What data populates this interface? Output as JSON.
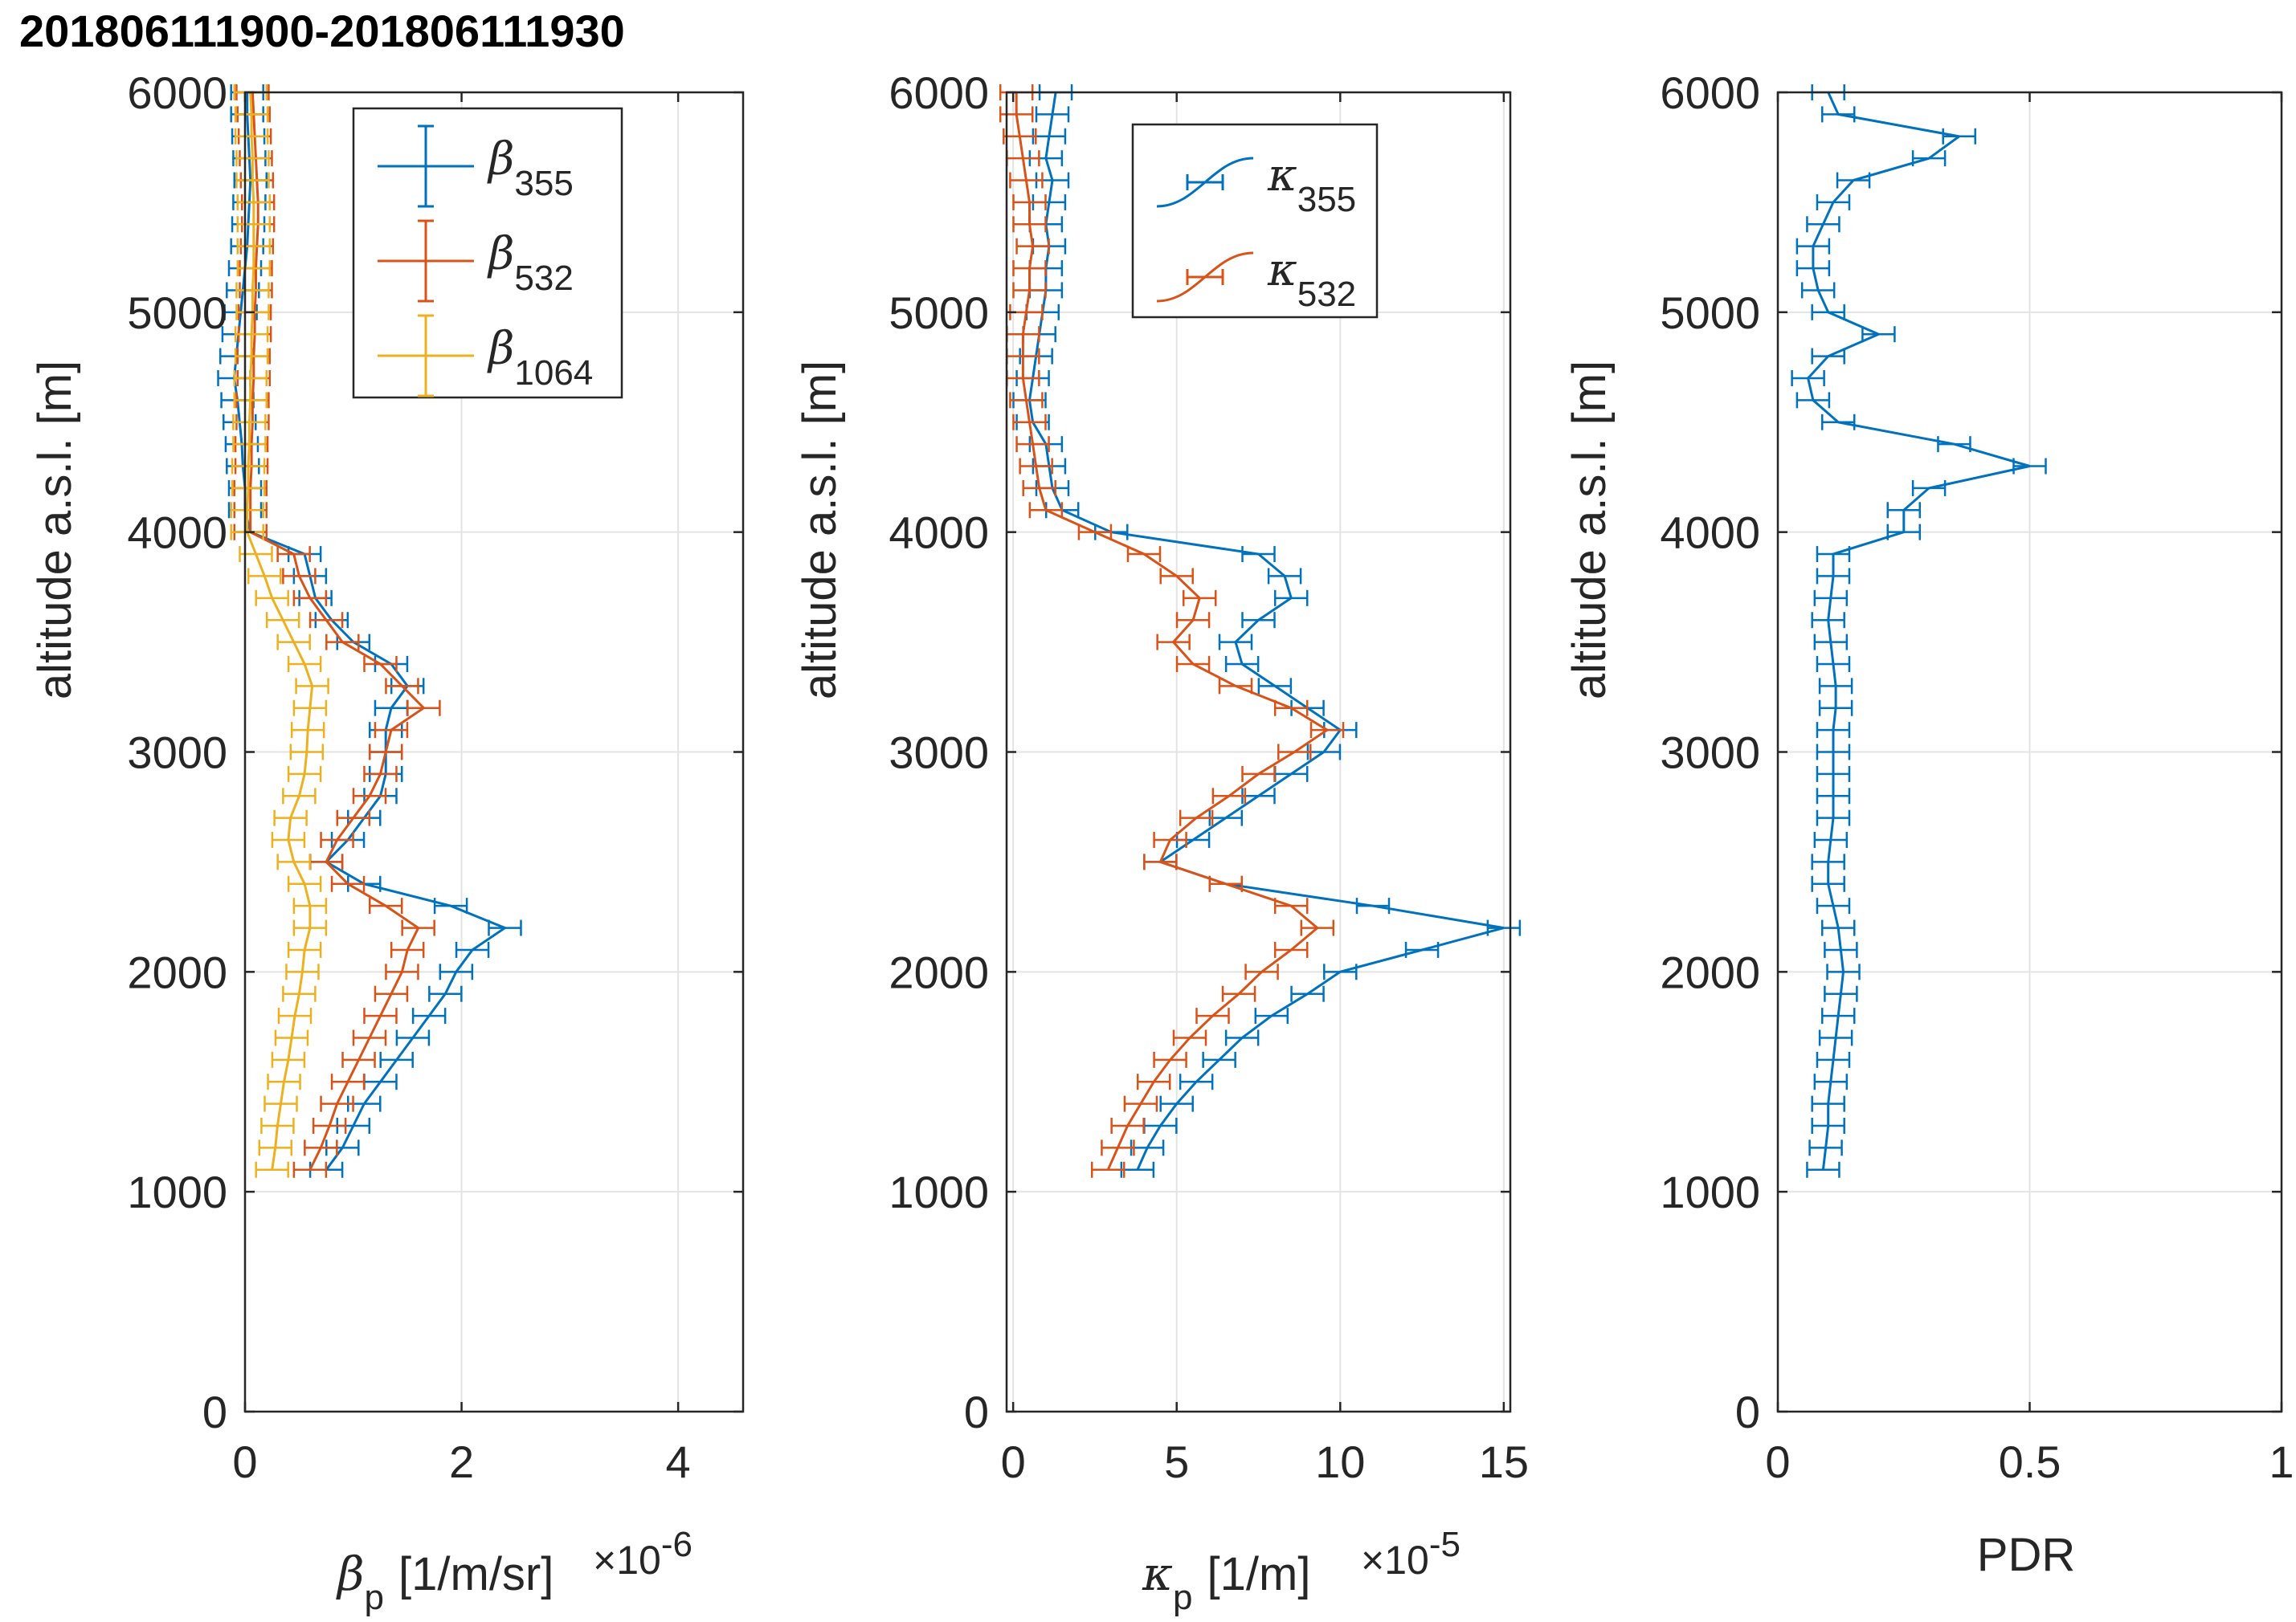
{
  "title": "201806111900-201806111930",
  "chart_data": [
    {
      "type": "line",
      "panel": "backscatter",
      "ylabel": "altitude a.s.l. [m]",
      "xlabel_symbol": "β",
      "xlabel_sub": "p",
      "xlabel_unit": "[1/m/sr]",
      "exponent_base": "×10",
      "exponent_power": "-6",
      "xlim": [
        0,
        4.6
      ],
      "ylim": [
        0,
        6000
      ],
      "xticks": [
        0,
        2,
        4
      ],
      "yticks": [
        0,
        1000,
        2000,
        3000,
        4000,
        5000,
        6000
      ],
      "grid": true,
      "legend_position": "top-right",
      "series": [
        {
          "name": "β355",
          "symbol": "β",
          "sub": "355",
          "color": "#0072BD",
          "y": [
            1100,
            1200,
            1300,
            1400,
            1500,
            1600,
            1700,
            1800,
            1900,
            2000,
            2100,
            2200,
            2300,
            2400,
            2500,
            2600,
            2700,
            2800,
            2900,
            3000,
            3100,
            3200,
            3300,
            3400,
            3500,
            3600,
            3700,
            3800,
            3900,
            4000,
            4100,
            4200,
            4300,
            4400,
            4500,
            4600,
            4700,
            4800,
            4900,
            5000,
            5100,
            5200,
            5300,
            5400,
            5500,
            5600,
            5700,
            5800,
            5900,
            6000
          ],
          "x": [
            0.75,
            0.9,
            1.0,
            1.1,
            1.25,
            1.4,
            1.55,
            1.7,
            1.85,
            1.95,
            2.1,
            2.4,
            1.9,
            1.1,
            0.75,
            0.95,
            1.1,
            1.25,
            1.3,
            1.3,
            1.3,
            1.35,
            1.5,
            1.35,
            1.0,
            0.8,
            0.65,
            0.6,
            0.55,
            0.05,
            0.0,
            0.0,
            -0.02,
            -0.03,
            -0.05,
            -0.07,
            -0.1,
            -0.08,
            -0.06,
            -0.04,
            -0.02,
            0.0,
            0.02,
            0.03,
            0.04,
            0.05,
            0.04,
            0.03,
            0.02,
            0.02
          ]
        },
        {
          "name": "β532",
          "symbol": "β",
          "sub": "532",
          "color": "#D95319",
          "y": [
            1100,
            1200,
            1300,
            1400,
            1500,
            1600,
            1700,
            1800,
            1900,
            2000,
            2100,
            2200,
            2300,
            2400,
            2500,
            2600,
            2700,
            2800,
            2900,
            3000,
            3100,
            3200,
            3300,
            3400,
            3500,
            3600,
            3700,
            3800,
            3900,
            4000,
            4100,
            4200,
            4300,
            4400,
            4500,
            4600,
            4700,
            4800,
            4900,
            5000,
            5100,
            5200,
            5300,
            5400,
            5500,
            5600,
            5700,
            5800,
            5900,
            6000
          ],
          "x": [
            0.6,
            0.7,
            0.78,
            0.85,
            0.95,
            1.05,
            1.15,
            1.25,
            1.35,
            1.45,
            1.5,
            1.6,
            1.3,
            0.95,
            0.75,
            0.85,
            1.0,
            1.15,
            1.25,
            1.3,
            1.35,
            1.65,
            1.45,
            1.25,
            0.9,
            0.75,
            0.6,
            0.5,
            0.45,
            0.05,
            0.05,
            0.05,
            0.06,
            0.06,
            0.07,
            0.07,
            0.08,
            0.08,
            0.09,
            0.09,
            0.1,
            0.1,
            0.11,
            0.12,
            0.12,
            0.11,
            0.1,
            0.09,
            0.08,
            0.07
          ]
        },
        {
          "name": "β1064",
          "symbol": "β",
          "sub": "1064",
          "color": "#EDB120",
          "y": [
            1100,
            1200,
            1300,
            1400,
            1500,
            1600,
            1700,
            1800,
            1900,
            2000,
            2100,
            2200,
            2300,
            2400,
            2500,
            2600,
            2700,
            2800,
            2900,
            3000,
            3100,
            3200,
            3300,
            3400,
            3500,
            3600,
            3700,
            3800,
            3900,
            4000,
            4100,
            4200,
            4300,
            4400,
            4500,
            4600,
            4700,
            4800,
            4900,
            5000,
            5100,
            5200,
            5300,
            5400,
            5500,
            5600,
            5700,
            5800,
            5900,
            6000
          ],
          "x": [
            0.25,
            0.28,
            0.3,
            0.33,
            0.36,
            0.4,
            0.43,
            0.46,
            0.5,
            0.53,
            0.55,
            0.6,
            0.6,
            0.55,
            0.45,
            0.4,
            0.42,
            0.5,
            0.55,
            0.57,
            0.58,
            0.6,
            0.62,
            0.55,
            0.45,
            0.35,
            0.25,
            0.18,
            0.1,
            0.02,
            0.02,
            0.03,
            0.03,
            0.04,
            0.04,
            0.05,
            0.05,
            0.06,
            0.06,
            0.07,
            0.07,
            0.08,
            0.08,
            0.08,
            0.08,
            0.07,
            0.07,
            0.06,
            0.06,
            0.05
          ]
        }
      ]
    },
    {
      "type": "line",
      "panel": "extinction",
      "ylabel": "altitude a.s.l. [m]",
      "xlabel_symbol": "κ",
      "xlabel_sub": "p",
      "xlabel_unit": "[1/m]",
      "exponent_base": "×10",
      "exponent_power": "-5",
      "xlim": [
        -0.2,
        15.2
      ],
      "ylim": [
        0,
        6000
      ],
      "xticks": [
        0,
        5,
        10,
        15
      ],
      "yticks": [
        0,
        1000,
        2000,
        3000,
        4000,
        5000,
        6000
      ],
      "grid": true,
      "legend_position": "top-right",
      "series": [
        {
          "name": "κ355",
          "symbol": "κ",
          "sub": "355",
          "color": "#0072BD",
          "y": [
            1100,
            1200,
            1300,
            1400,
            1500,
            1600,
            1700,
            1800,
            1900,
            2000,
            2100,
            2200,
            2300,
            2400,
            2500,
            2600,
            2700,
            2800,
            2900,
            3000,
            3100,
            3200,
            3300,
            3400,
            3500,
            3600,
            3700,
            3800,
            3900,
            4000,
            4100,
            4200,
            4300,
            4400,
            4500,
            4600,
            4700,
            4800,
            4900,
            5000,
            5100,
            5200,
            5300,
            5400,
            5500,
            5600,
            5700,
            5800,
            5900,
            6000
          ],
          "x": [
            3.8,
            4.1,
            4.5,
            5.0,
            5.6,
            6.3,
            7.0,
            7.9,
            9.0,
            10.0,
            12.5,
            15.0,
            11.0,
            6.5,
            4.5,
            5.5,
            6.5,
            7.5,
            8.5,
            9.5,
            10.0,
            9.0,
            8.0,
            7.0,
            6.8,
            7.5,
            8.5,
            8.3,
            7.5,
            3.0,
            1.5,
            1.2,
            1.1,
            1.0,
            0.6,
            0.5,
            0.6,
            0.7,
            0.8,
            0.9,
            1.0,
            1.0,
            1.1,
            1.0,
            1.1,
            1.2,
            1.0,
            1.1,
            1.2,
            1.3
          ]
        },
        {
          "name": "κ532",
          "symbol": "κ",
          "sub": "532",
          "color": "#D95319",
          "y": [
            1100,
            1200,
            1300,
            1400,
            1500,
            1600,
            1700,
            1800,
            1900,
            2000,
            2100,
            2200,
            2300,
            2400,
            2500,
            2600,
            2700,
            2800,
            2900,
            3000,
            3100,
            3200,
            3300,
            3400,
            3500,
            3600,
            3700,
            3800,
            3900,
            4000,
            4100,
            4200,
            4300,
            4400,
            4500,
            4600,
            4700,
            4800,
            4900,
            5000,
            5100,
            5200,
            5300,
            5400,
            5500,
            5600,
            5700,
            5800,
            5900,
            6000
          ],
          "x": [
            2.9,
            3.2,
            3.5,
            3.9,
            4.3,
            4.8,
            5.4,
            6.1,
            6.9,
            7.6,
            8.5,
            9.3,
            8.5,
            6.5,
            4.5,
            4.8,
            5.6,
            6.6,
            7.5,
            8.6,
            9.6,
            8.5,
            6.8,
            5.5,
            4.9,
            5.5,
            5.7,
            5.0,
            4.0,
            2.5,
            1.0,
            0.8,
            0.7,
            0.6,
            0.5,
            0.4,
            0.3,
            0.3,
            0.3,
            0.4,
            0.5,
            0.5,
            0.6,
            0.5,
            0.5,
            0.4,
            0.3,
            0.2,
            0.1,
            0.1
          ]
        }
      ]
    },
    {
      "type": "line",
      "panel": "depolarization",
      "ylabel": "altitude a.s.l. [m]",
      "xlabel": "PDR",
      "xlim": [
        0,
        1
      ],
      "ylim": [
        0,
        6000
      ],
      "xticks": [
        0,
        0.5,
        1
      ],
      "xtick_labels": [
        "0",
        "0.5",
        "1"
      ],
      "yticks": [
        0,
        1000,
        2000,
        3000,
        4000,
        5000,
        6000
      ],
      "grid": true,
      "series": [
        {
          "name": "PDR",
          "color": "#0072BD",
          "y": [
            1100,
            1200,
            1300,
            1400,
            1500,
            1600,
            1700,
            1800,
            1900,
            2000,
            2100,
            2200,
            2300,
            2400,
            2500,
            2600,
            2700,
            2800,
            2900,
            3000,
            3100,
            3200,
            3300,
            3400,
            3500,
            3600,
            3700,
            3800,
            3900,
            4000,
            4100,
            4200,
            4300,
            4400,
            4500,
            4600,
            4700,
            4800,
            4900,
            5000,
            5100,
            5200,
            5300,
            5400,
            5500,
            5600,
            5700,
            5800,
            5900,
            6000
          ],
          "x": [
            0.09,
            0.095,
            0.1,
            0.1,
            0.105,
            0.11,
            0.115,
            0.12,
            0.125,
            0.13,
            0.125,
            0.12,
            0.11,
            0.1,
            0.1,
            0.105,
            0.11,
            0.11,
            0.11,
            0.11,
            0.11,
            0.115,
            0.115,
            0.11,
            0.105,
            0.1,
            0.105,
            0.11,
            0.11,
            0.25,
            0.25,
            0.3,
            0.5,
            0.35,
            0.12,
            0.07,
            0.06,
            0.1,
            0.2,
            0.1,
            0.08,
            0.07,
            0.07,
            0.09,
            0.11,
            0.15,
            0.3,
            0.36,
            0.12,
            0.1
          ]
        }
      ]
    }
  ]
}
